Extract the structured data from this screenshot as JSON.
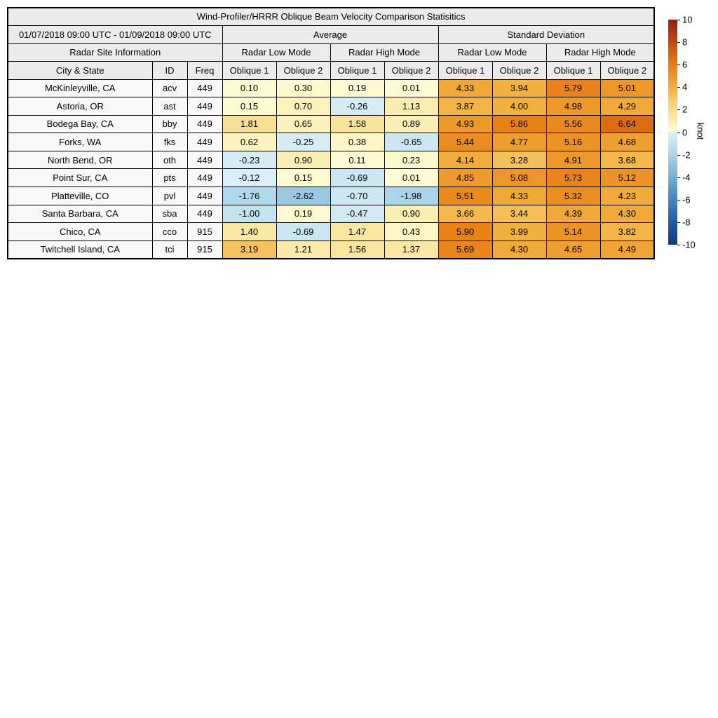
{
  "header": {
    "date_range": "01/07/2018 09:00 UTC - 01/09/2018 09:00 UTC",
    "average_label": "Average",
    "std_label": "Standard Deviation",
    "site_info_label": "Radar Site Information",
    "mode_labels": [
      "Radar Low Mode",
      "Radar High Mode",
      "Radar Low Mode",
      "Radar High Mode"
    ],
    "city_label": "City & State",
    "id_label": "ID",
    "freq_label": "Freq",
    "oblique_labels": [
      "Oblique 1",
      "Oblique 2",
      "Oblique 1",
      "Oblique 2",
      "Oblique 1",
      "Oblique 2",
      "Oblique 1",
      "Oblique 2"
    ]
  },
  "colorbar": {
    "unit": "knot",
    "min": -10,
    "max": 10,
    "ticks": [
      10,
      8,
      6,
      4,
      2,
      0,
      -2,
      -4,
      -6,
      -8,
      -10
    ],
    "positive_stops": [
      "#FFFCD5",
      "#F8DE8C",
      "#F2B13E",
      "#E87E12",
      "#C24A0E",
      "#9B1C10"
    ],
    "negative_stops": [
      "#DCF0F7",
      "#A8D5E9",
      "#74AFD3",
      "#4285BF",
      "#205CA6",
      "#14387F"
    ]
  },
  "chart_data": {
    "type": "heatmap",
    "title": "Wind-Profiler/HRRR Oblique Beam Velocity Comparison Statisitics",
    "unit": "knot",
    "colorbar_range": [
      -10,
      10
    ],
    "value_columns": [
      "Average Radar Low Mode Oblique 1",
      "Average Radar Low Mode Oblique 2",
      "Average Radar High Mode Oblique 1",
      "Average Radar High Mode Oblique 2",
      "Standard Deviation Radar Low Mode Oblique 1",
      "Standard Deviation Radar Low Mode Oblique 2",
      "Standard Deviation Radar High Mode Oblique 1",
      "Standard Deviation Radar High Mode Oblique 2"
    ],
    "rows": [
      {
        "city": "McKinleyville, CA",
        "id": "acv",
        "freq": "449",
        "values": [
          0.1,
          0.3,
          0.19,
          0.01,
          4.33,
          3.94,
          5.79,
          5.01
        ]
      },
      {
        "city": "Astoria, OR",
        "id": "ast",
        "freq": "449",
        "values": [
          0.15,
          0.7,
          -0.26,
          1.13,
          3.87,
          4.0,
          4.98,
          4.29
        ]
      },
      {
        "city": "Bodega Bay, CA",
        "id": "bby",
        "freq": "449",
        "values": [
          1.81,
          0.65,
          1.58,
          0.89,
          4.93,
          5.86,
          5.56,
          6.64
        ]
      },
      {
        "city": "Forks, WA",
        "id": "fks",
        "freq": "449",
        "values": [
          0.62,
          -0.25,
          0.38,
          -0.65,
          5.44,
          4.77,
          5.16,
          4.68
        ]
      },
      {
        "city": "North Bend, OR",
        "id": "oth",
        "freq": "449",
        "values": [
          -0.23,
          0.9,
          0.11,
          0.23,
          4.14,
          3.28,
          4.91,
          3.68
        ]
      },
      {
        "city": "Point Sur, CA",
        "id": "pts",
        "freq": "449",
        "values": [
          -0.12,
          0.15,
          -0.69,
          0.01,
          4.85,
          5.08,
          5.73,
          5.12
        ]
      },
      {
        "city": "Platteville, CO",
        "id": "pvl",
        "freq": "449",
        "values": [
          -1.76,
          -2.62,
          -0.7,
          -1.98,
          5.51,
          4.33,
          5.32,
          4.23
        ]
      },
      {
        "city": "Santa Barbara, CA",
        "id": "sba",
        "freq": "449",
        "values": [
          -1.0,
          0.19,
          -0.47,
          0.9,
          3.66,
          3.44,
          4.39,
          4.3
        ]
      },
      {
        "city": "Chico, CA",
        "id": "cco",
        "freq": "915",
        "values": [
          1.4,
          -0.69,
          1.47,
          0.43,
          5.9,
          3.99,
          5.14,
          3.82
        ]
      },
      {
        "city": "Twitchell Island, CA",
        "id": "tci",
        "freq": "915",
        "values": [
          3.19,
          1.21,
          1.56,
          1.37,
          5.69,
          4.3,
          4.65,
          4.49
        ]
      }
    ]
  }
}
